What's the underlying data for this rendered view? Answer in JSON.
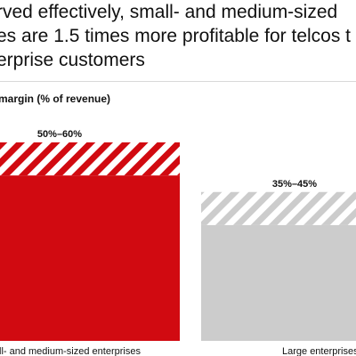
{
  "header": {
    "title_lines": [
      "rved effectively, small- and medium-sized",
      "es are 1.5 times more profitable for telcos t",
      "erprise customers"
    ]
  },
  "chart_data": {
    "type": "bar",
    "title": "",
    "ylabel": " margin (% of revenue)",
    "categories": [
      "ll- and medium-sized enterprises",
      "Large enterprises"
    ],
    "series": [
      {
        "low": [
          50,
          35
        ],
        "high": [
          60,
          45
        ]
      }
    ],
    "range_labels": [
      "50%–60%",
      "35%–45%"
    ],
    "ylim": [
      0,
      60
    ],
    "colors": {
      "bar_1": "#d10a11",
      "bar_2": "#cccccc",
      "stripe_1": "#d10a11",
      "stripe_2": "#cccccc"
    },
    "grid": false
  }
}
